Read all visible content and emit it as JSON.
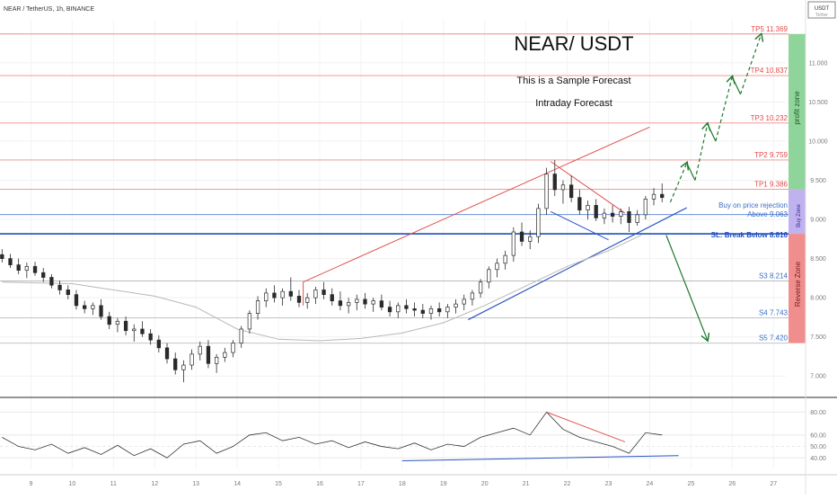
{
  "header": {
    "symbol_line": "NEAR / TetherUS, 1h, BINANCE",
    "currency_badge": "USDT",
    "currency_badge_sub": "Tether"
  },
  "annotations": {
    "title": "NEAR/ USDT",
    "subtitle": "This is a Sample Forecast",
    "subtitle2": "Intraday Forecast",
    "zone_profit": "profit zone",
    "zone_buy": "Buy Zone",
    "zone_reverse": "Reverse Zone",
    "buy_note": "Buy on price rejection",
    "above_note": "Above 9.063",
    "sl_note": "SL: Break Below 8.816"
  },
  "colors": {
    "candle_up": "#2a2a2a",
    "candle_down": "#2a2a2a",
    "resistance_lines": "#f08c8c",
    "support_lines": "#6a8fd8",
    "sl_line": "#1f4fbf",
    "trend_blue": "#2c55c0",
    "trend_red": "#e05050",
    "arrows": "#1f7a2e",
    "profit_zone": "#8fd49a",
    "buy_zone": "#bfb2ef",
    "reverse_zone": "#f08e8e",
    "ma_line": "#b8b8b8",
    "rsi_line": "#333333"
  },
  "chart_data": [
    {
      "type": "line",
      "name_hint": "price",
      "xlabel": "",
      "ylabel": "",
      "x_ticks": [
        "9",
        "10",
        "11",
        "12",
        "13",
        "14",
        "15",
        "16",
        "17",
        "18",
        "19",
        "20",
        "21",
        "22",
        "23",
        "24",
        "25",
        "26",
        "27"
      ],
      "y_ticks": [
        7.0,
        7.5,
        8.0,
        8.5,
        9.0,
        9.5,
        10.0,
        10.5,
        11.0
      ],
      "y_tick_labels": [
        "7.000",
        "7.500",
        "8.000",
        "8.500",
        "9.000",
        "9.500",
        "10.000",
        "10.500",
        "11.000"
      ],
      "ylim": [
        6.75,
        11.55
      ],
      "xlim": [
        8.25,
        27.3
      ],
      "levels": [
        {
          "label": "TP5 11.369",
          "value": 11.369,
          "kind": "tp"
        },
        {
          "label": "TP4 10.837",
          "value": 10.837,
          "kind": "tp"
        },
        {
          "label": "TP3 10.232",
          "value": 10.232,
          "kind": "tp"
        },
        {
          "label": "TP2 9.759",
          "value": 9.759,
          "kind": "tp"
        },
        {
          "label": "TP1 9.386",
          "value": 9.386,
          "kind": "tp"
        },
        {
          "label": "",
          "value": 9.063,
          "kind": "entry"
        },
        {
          "label": "",
          "value": 8.816,
          "kind": "sl"
        },
        {
          "label": "S3 8.214",
          "value": 8.214,
          "kind": "s"
        },
        {
          "label": "S4 7.743",
          "value": 7.743,
          "kind": "s"
        },
        {
          "label": "S5 7.420",
          "value": 7.42,
          "kind": "s"
        }
      ],
      "candles": [
        {
          "x": 8.3,
          "o": 8.55,
          "h": 8.62,
          "l": 8.45,
          "c": 8.5
        },
        {
          "x": 8.5,
          "o": 8.5,
          "h": 8.56,
          "l": 8.38,
          "c": 8.42
        },
        {
          "x": 8.7,
          "o": 8.42,
          "h": 8.5,
          "l": 8.3,
          "c": 8.35
        },
        {
          "x": 8.9,
          "o": 8.35,
          "h": 8.45,
          "l": 8.25,
          "c": 8.4
        },
        {
          "x": 9.1,
          "o": 8.4,
          "h": 8.46,
          "l": 8.28,
          "c": 8.32
        },
        {
          "x": 9.3,
          "o": 8.32,
          "h": 8.38,
          "l": 8.2,
          "c": 8.26
        },
        {
          "x": 9.5,
          "o": 8.26,
          "h": 8.3,
          "l": 8.12,
          "c": 8.16
        },
        {
          "x": 9.7,
          "o": 8.16,
          "h": 8.22,
          "l": 8.04,
          "c": 8.1
        },
        {
          "x": 9.9,
          "o": 8.1,
          "h": 8.16,
          "l": 7.98,
          "c": 8.04
        },
        {
          "x": 10.1,
          "o": 8.04,
          "h": 8.1,
          "l": 7.85,
          "c": 7.9
        },
        {
          "x": 10.3,
          "o": 7.9,
          "h": 7.96,
          "l": 7.8,
          "c": 7.86
        },
        {
          "x": 10.5,
          "o": 7.86,
          "h": 7.94,
          "l": 7.78,
          "c": 7.9
        },
        {
          "x": 10.7,
          "o": 7.9,
          "h": 7.98,
          "l": 7.72,
          "c": 7.76
        },
        {
          "x": 10.9,
          "o": 7.76,
          "h": 7.82,
          "l": 7.6,
          "c": 7.66
        },
        {
          "x": 11.1,
          "o": 7.66,
          "h": 7.74,
          "l": 7.56,
          "c": 7.7
        },
        {
          "x": 11.3,
          "o": 7.7,
          "h": 7.76,
          "l": 7.52,
          "c": 7.58
        },
        {
          "x": 11.5,
          "o": 7.58,
          "h": 7.66,
          "l": 7.44,
          "c": 7.6
        },
        {
          "x": 11.7,
          "o": 7.6,
          "h": 7.7,
          "l": 7.5,
          "c": 7.54
        },
        {
          "x": 11.9,
          "o": 7.54,
          "h": 7.6,
          "l": 7.4,
          "c": 7.46
        },
        {
          "x": 12.1,
          "o": 7.46,
          "h": 7.52,
          "l": 7.3,
          "c": 7.36
        },
        {
          "x": 12.3,
          "o": 7.36,
          "h": 7.42,
          "l": 7.16,
          "c": 7.22
        },
        {
          "x": 12.5,
          "o": 7.22,
          "h": 7.3,
          "l": 7.02,
          "c": 7.08
        },
        {
          "x": 12.7,
          "o": 7.08,
          "h": 7.2,
          "l": 6.92,
          "c": 7.14
        },
        {
          "x": 12.9,
          "o": 7.14,
          "h": 7.34,
          "l": 7.08,
          "c": 7.28
        },
        {
          "x": 13.1,
          "o": 7.28,
          "h": 7.44,
          "l": 7.2,
          "c": 7.38
        },
        {
          "x": 13.3,
          "o": 7.38,
          "h": 7.46,
          "l": 7.1,
          "c": 7.16
        },
        {
          "x": 13.5,
          "o": 7.16,
          "h": 7.28,
          "l": 7.04,
          "c": 7.24
        },
        {
          "x": 13.7,
          "o": 7.24,
          "h": 7.36,
          "l": 7.18,
          "c": 7.3
        },
        {
          "x": 13.9,
          "o": 7.3,
          "h": 7.46,
          "l": 7.24,
          "c": 7.42
        },
        {
          "x": 14.1,
          "o": 7.42,
          "h": 7.64,
          "l": 7.36,
          "c": 7.6
        },
        {
          "x": 14.3,
          "o": 7.6,
          "h": 7.84,
          "l": 7.54,
          "c": 7.8
        },
        {
          "x": 14.5,
          "o": 7.8,
          "h": 8.02,
          "l": 7.72,
          "c": 7.96
        },
        {
          "x": 14.7,
          "o": 7.96,
          "h": 8.12,
          "l": 7.88,
          "c": 8.06
        },
        {
          "x": 14.9,
          "o": 8.06,
          "h": 8.16,
          "l": 7.94,
          "c": 8.0
        },
        {
          "x": 15.1,
          "o": 8.0,
          "h": 8.12,
          "l": 7.9,
          "c": 8.08
        },
        {
          "x": 15.3,
          "o": 8.08,
          "h": 8.26,
          "l": 7.96,
          "c": 8.02
        },
        {
          "x": 15.5,
          "o": 8.02,
          "h": 8.1,
          "l": 7.88,
          "c": 7.94
        },
        {
          "x": 15.7,
          "o": 7.94,
          "h": 8.06,
          "l": 7.86,
          "c": 8.0
        },
        {
          "x": 15.9,
          "o": 8.0,
          "h": 8.14,
          "l": 7.92,
          "c": 8.1
        },
        {
          "x": 16.1,
          "o": 8.1,
          "h": 8.2,
          "l": 7.98,
          "c": 8.04
        },
        {
          "x": 16.3,
          "o": 8.04,
          "h": 8.12,
          "l": 7.9,
          "c": 7.96
        },
        {
          "x": 16.5,
          "o": 7.96,
          "h": 8.08,
          "l": 7.84,
          "c": 7.9
        },
        {
          "x": 16.7,
          "o": 7.9,
          "h": 8.0,
          "l": 7.8,
          "c": 7.94
        },
        {
          "x": 16.9,
          "o": 7.94,
          "h": 8.04,
          "l": 7.84,
          "c": 7.98
        },
        {
          "x": 17.1,
          "o": 7.98,
          "h": 8.06,
          "l": 7.86,
          "c": 7.92
        },
        {
          "x": 17.3,
          "o": 7.92,
          "h": 8.0,
          "l": 7.82,
          "c": 7.96
        },
        {
          "x": 17.5,
          "o": 7.96,
          "h": 8.04,
          "l": 7.84,
          "c": 7.88
        },
        {
          "x": 17.7,
          "o": 7.88,
          "h": 7.96,
          "l": 7.76,
          "c": 7.82
        },
        {
          "x": 17.9,
          "o": 7.82,
          "h": 7.94,
          "l": 7.74,
          "c": 7.9
        },
        {
          "x": 18.1,
          "o": 7.9,
          "h": 7.98,
          "l": 7.8,
          "c": 7.86
        },
        {
          "x": 18.3,
          "o": 7.86,
          "h": 7.94,
          "l": 7.76,
          "c": 7.84
        },
        {
          "x": 18.5,
          "o": 7.84,
          "h": 7.92,
          "l": 7.74,
          "c": 7.8
        },
        {
          "x": 18.7,
          "o": 7.8,
          "h": 7.9,
          "l": 7.72,
          "c": 7.86
        },
        {
          "x": 18.9,
          "o": 7.86,
          "h": 7.94,
          "l": 7.76,
          "c": 7.82
        },
        {
          "x": 19.1,
          "o": 7.82,
          "h": 7.92,
          "l": 7.74,
          "c": 7.88
        },
        {
          "x": 19.3,
          "o": 7.88,
          "h": 7.98,
          "l": 7.8,
          "c": 7.92
        },
        {
          "x": 19.5,
          "o": 7.92,
          "h": 8.04,
          "l": 7.84,
          "c": 7.98
        },
        {
          "x": 19.7,
          "o": 7.98,
          "h": 8.1,
          "l": 7.9,
          "c": 8.06
        },
        {
          "x": 19.9,
          "o": 8.06,
          "h": 8.24,
          "l": 8.0,
          "c": 8.2
        },
        {
          "x": 20.1,
          "o": 8.2,
          "h": 8.4,
          "l": 8.12,
          "c": 8.36
        },
        {
          "x": 20.3,
          "o": 8.36,
          "h": 8.5,
          "l": 8.26,
          "c": 8.44
        },
        {
          "x": 20.5,
          "o": 8.44,
          "h": 8.6,
          "l": 8.36,
          "c": 8.54
        },
        {
          "x": 20.7,
          "o": 8.54,
          "h": 8.9,
          "l": 8.46,
          "c": 8.84
        },
        {
          "x": 20.9,
          "o": 8.84,
          "h": 8.96,
          "l": 8.66,
          "c": 8.72
        },
        {
          "x": 21.1,
          "o": 8.72,
          "h": 8.86,
          "l": 8.62,
          "c": 8.78
        },
        {
          "x": 21.3,
          "o": 8.78,
          "h": 9.2,
          "l": 8.7,
          "c": 9.14
        },
        {
          "x": 21.5,
          "o": 9.14,
          "h": 9.66,
          "l": 9.06,
          "c": 9.58
        },
        {
          "x": 21.7,
          "o": 9.58,
          "h": 9.76,
          "l": 9.3,
          "c": 9.38
        },
        {
          "x": 21.9,
          "o": 9.38,
          "h": 9.5,
          "l": 9.2,
          "c": 9.44
        },
        {
          "x": 22.1,
          "o": 9.44,
          "h": 9.56,
          "l": 9.22,
          "c": 9.28
        },
        {
          "x": 22.3,
          "o": 9.28,
          "h": 9.38,
          "l": 9.06,
          "c": 9.12
        },
        {
          "x": 22.5,
          "o": 9.12,
          "h": 9.24,
          "l": 9.0,
          "c": 9.18
        },
        {
          "x": 22.7,
          "o": 9.18,
          "h": 9.26,
          "l": 8.98,
          "c": 9.02
        },
        {
          "x": 22.9,
          "o": 9.02,
          "h": 9.14,
          "l": 8.94,
          "c": 9.08
        },
        {
          "x": 23.1,
          "o": 9.08,
          "h": 9.18,
          "l": 8.96,
          "c": 9.04
        },
        {
          "x": 23.3,
          "o": 9.04,
          "h": 9.14,
          "l": 8.94,
          "c": 9.1
        },
        {
          "x": 23.5,
          "o": 9.1,
          "h": 9.16,
          "l": 8.84,
          "c": 8.96
        },
        {
          "x": 23.7,
          "o": 8.96,
          "h": 9.12,
          "l": 8.92,
          "c": 9.06
        },
        {
          "x": 23.9,
          "o": 9.06,
          "h": 9.3,
          "l": 9.0,
          "c": 9.26
        },
        {
          "x": 24.1,
          "o": 9.26,
          "h": 9.4,
          "l": 9.18,
          "c": 9.32
        },
        {
          "x": 24.3,
          "o": 9.32,
          "h": 9.46,
          "l": 9.22,
          "c": 9.28
        }
      ]
    },
    {
      "type": "line",
      "name_hint": "rsi",
      "xlabel": "",
      "ylabel": "",
      "ylim": [
        30,
        85
      ],
      "y_ticks": [
        40,
        50,
        60,
        80
      ],
      "y_tick_labels": [
        "40.00",
        "50.00",
        "60.00",
        "80.00"
      ],
      "x": [
        8.3,
        8.7,
        9.1,
        9.5,
        9.9,
        10.3,
        10.7,
        11.1,
        11.5,
        11.9,
        12.3,
        12.7,
        13.1,
        13.5,
        13.9,
        14.3,
        14.7,
        15.1,
        15.5,
        15.9,
        16.3,
        16.7,
        17.1,
        17.5,
        17.9,
        18.3,
        18.7,
        19.1,
        19.5,
        19.9,
        20.3,
        20.7,
        21.1,
        21.5,
        21.9,
        22.3,
        22.7,
        23.1,
        23.5,
        23.9,
        24.3
      ],
      "values": [
        58,
        50,
        47,
        52,
        44,
        49,
        43,
        51,
        42,
        48,
        40,
        52,
        55,
        44,
        50,
        60,
        62,
        55,
        58,
        52,
        55,
        49,
        54,
        50,
        48,
        53,
        47,
        52,
        50,
        58,
        62,
        66,
        60,
        80,
        65,
        58,
        54,
        50,
        44,
        62,
        60
      ]
    }
  ]
}
